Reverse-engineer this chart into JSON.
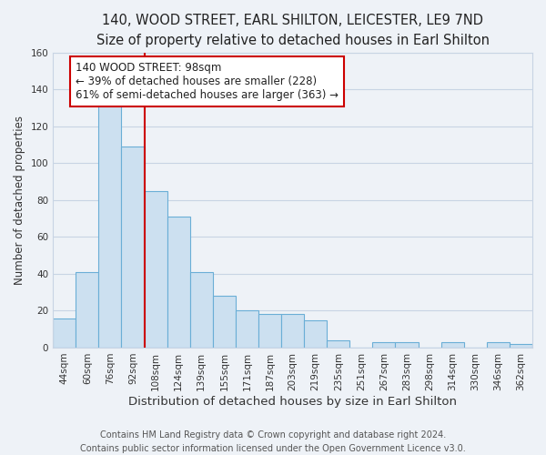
{
  "title": "140, WOOD STREET, EARL SHILTON, LEICESTER, LE9 7ND",
  "subtitle": "Size of property relative to detached houses in Earl Shilton",
  "xlabel": "Distribution of detached houses by size in Earl Shilton",
  "ylabel": "Number of detached properties",
  "bar_labels": [
    "44sqm",
    "60sqm",
    "76sqm",
    "92sqm",
    "108sqm",
    "124sqm",
    "139sqm",
    "155sqm",
    "171sqm",
    "187sqm",
    "203sqm",
    "219sqm",
    "235sqm",
    "251sqm",
    "267sqm",
    "283sqm",
    "298sqm",
    "314sqm",
    "330sqm",
    "346sqm",
    "362sqm"
  ],
  "bar_values": [
    16,
    41,
    133,
    109,
    85,
    71,
    41,
    28,
    20,
    18,
    18,
    15,
    4,
    0,
    3,
    3,
    0,
    3,
    0,
    3,
    2
  ],
  "bar_color": "#cce0f0",
  "bar_edge_color": "#6aaed6",
  "ylim": [
    0,
    160
  ],
  "yticks": [
    0,
    20,
    40,
    60,
    80,
    100,
    120,
    140,
    160
  ],
  "vline_color": "#cc0000",
  "annotation_line1": "140 WOOD STREET: 98sqm",
  "annotation_line2": "← 39% of detached houses are smaller (228)",
  "annotation_line3": "61% of semi-detached houses are larger (363) →",
  "annotation_box_color": "#ffffff",
  "annotation_box_edgecolor": "#cc0000",
  "footer1": "Contains HM Land Registry data © Crown copyright and database right 2024.",
  "footer2": "Contains public sector information licensed under the Open Government Licence v3.0.",
  "bg_color": "#eef2f7",
  "plot_bg_color": "#eef2f7",
  "grid_color": "#c8d4e4",
  "title_fontsize": 10.5,
  "subtitle_fontsize": 9.5,
  "xlabel_fontsize": 9.5,
  "ylabel_fontsize": 8.5,
  "tick_fontsize": 7.5,
  "footer_fontsize": 7.0,
  "annotation_fontsize": 8.5
}
